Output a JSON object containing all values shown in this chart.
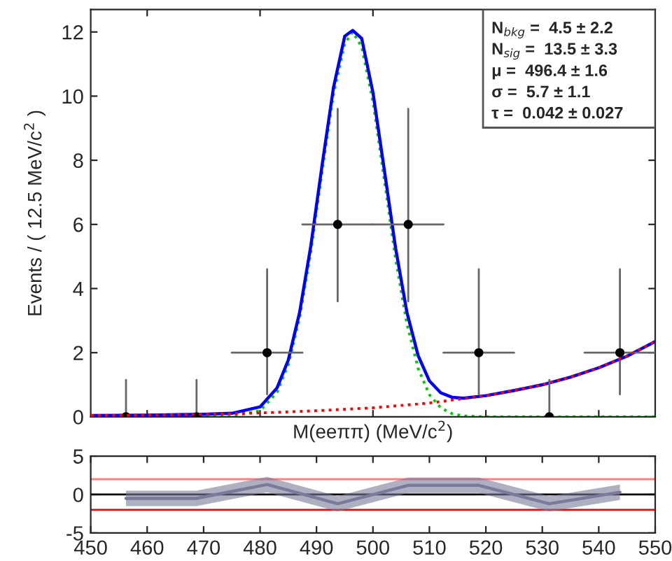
{
  "chart_data": [
    {
      "type": "line",
      "xlabel": "M(eeππ) (MeV/c$^{2}$)",
      "ylabel": "Events / ( 12.5 MeV/c$^{2}$ )",
      "xlim": [
        450,
        550
      ],
      "ylim": [
        0,
        12.7
      ],
      "yticks": [
        0,
        2,
        4,
        6,
        8,
        10,
        12
      ],
      "tick_labels": "y",
      "grid": false,
      "legend": false,
      "annotations": [
        "N$_{bkg}$ =  4.5 ± 2.2",
        "N$_{sig}$ =  13.5 ± 3.3",
        "μ =  496.4 ± 1.6",
        "σ =  5.7 ± 1.1",
        "τ =  0.042 ± 0.027"
      ],
      "series": [
        {
          "color": "#00cc00",
          "line_style": "dotted",
          "x": [
            450,
            470,
            475,
            480,
            483,
            485,
            487,
            489,
            491,
            493,
            495,
            496.4,
            498,
            500,
            502,
            504,
            506,
            508,
            510,
            512,
            514,
            516,
            520,
            530,
            540,
            550
          ],
          "values": [
            0,
            0,
            0.01,
            0.19,
            0.76,
            1.62,
            3.08,
            5.16,
            7.66,
            10.05,
            11.64,
            12.0,
            11.54,
            9.83,
            7.4,
            4.93,
            2.91,
            1.51,
            0.69,
            0.28,
            0.1,
            0.03,
            0,
            0,
            0,
            0
          ]
        },
        {
          "color": "#ff0000",
          "line_style": "dotted",
          "x": [
            450,
            460,
            470,
            480,
            490,
            500,
            510,
            520,
            525,
            530,
            535,
            540,
            545,
            550
          ],
          "values": [
            0.04,
            0.05,
            0.08,
            0.12,
            0.19,
            0.28,
            0.43,
            0.66,
            0.82,
            1.0,
            1.24,
            1.53,
            1.89,
            2.35
          ]
        },
        {
          "color": "#0000ff",
          "line_style": "solid",
          "x": [
            450,
            460,
            470,
            475,
            480,
            483,
            485,
            487,
            489,
            491,
            493,
            495,
            496.4,
            498,
            500,
            502,
            504,
            506,
            508,
            510,
            512,
            514,
            516,
            520,
            525,
            530,
            535,
            540,
            545,
            550
          ],
          "values": [
            0.04,
            0.05,
            0.08,
            0.11,
            0.31,
            0.9,
            1.77,
            3.25,
            5.34,
            7.86,
            10.26,
            11.87,
            12.05,
            11.8,
            10.11,
            7.71,
            5.27,
            3.27,
            1.91,
            1.12,
            0.75,
            0.61,
            0.58,
            0.66,
            0.82,
            1.0,
            1.24,
            1.53,
            1.89,
            2.35
          ]
        },
        {
          "type": "scatter",
          "color": "#000000",
          "marker": "circle",
          "x": [
            456.25,
            468.75,
            481.25,
            493.75,
            506.25,
            518.75,
            531.25,
            543.75
          ],
          "values": [
            0,
            0,
            2,
            6,
            6,
            2,
            0,
            2
          ],
          "errors": [
            [
              0,
              1.15
            ],
            [
              0,
              1.15
            ],
            [
              0.7,
              4.6
            ],
            [
              3.6,
              9.6
            ],
            [
              3.6,
              9.6
            ],
            [
              0.7,
              4.6
            ],
            [
              0,
              1.15
            ],
            [
              0.7,
              4.6
            ]
          ],
          "xerrors": [
            null,
            null,
            6.25,
            6.25,
            6.25,
            6.25,
            null,
            6.25
          ]
        }
      ]
    },
    {
      "type": "line",
      "xlim": [
        450,
        550
      ],
      "xticks": [
        450,
        460,
        470,
        480,
        490,
        500,
        510,
        520,
        530,
        540,
        550
      ],
      "ylim": [
        -5,
        5
      ],
      "yticks": [
        -5,
        0,
        5
      ],
      "grid": false,
      "ref_lines": [
        {
          "axis": "y",
          "value": 2,
          "color": "#ff8080"
        },
        {
          "axis": "y",
          "value": 0,
          "color": "#000000"
        },
        {
          "axis": "y",
          "value": -2,
          "color": "#ff0000"
        }
      ],
      "series": [
        {
          "color": "#7a7a9a",
          "x": [
            456.25,
            468.75,
            481.25,
            493.75,
            506.25,
            518.75,
            531.25,
            543.75
          ],
          "values": [
            -0.5,
            -0.5,
            1.3,
            -1.2,
            1.2,
            1.2,
            -1.2,
            0.3
          ],
          "lower": [
            -1.5,
            -1.5,
            0.3,
            -2.2,
            0.2,
            0.2,
            -2.2,
            -0.7
          ],
          "upper": [
            0.5,
            0.5,
            2.3,
            -0.2,
            2.2,
            2.2,
            -0.2,
            1.3
          ]
        }
      ]
    }
  ]
}
